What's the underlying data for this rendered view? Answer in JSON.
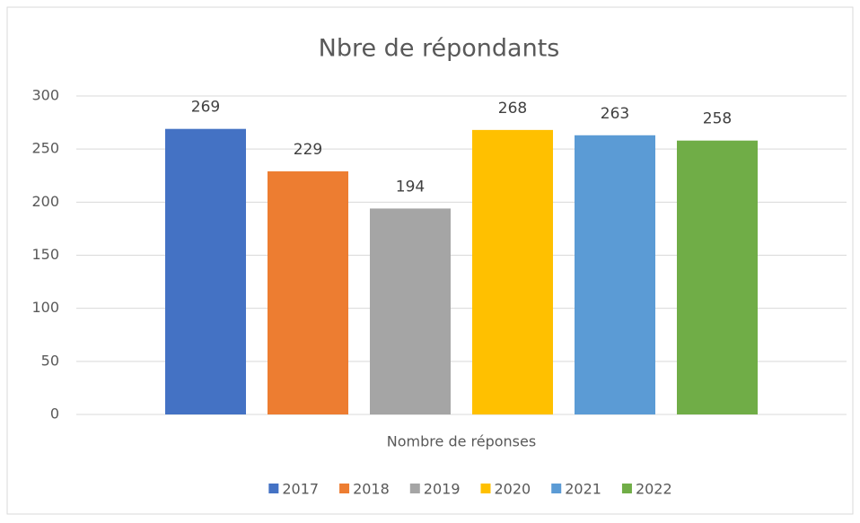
{
  "chart_data": {
    "type": "bar",
    "title": "Nbre de répondants",
    "categories": [
      "Nombre de réponses"
    ],
    "series": [
      {
        "name": "2017",
        "color": "#4472c4",
        "values": [
          269
        ]
      },
      {
        "name": "2018",
        "color": "#ed7d31",
        "values": [
          229
        ]
      },
      {
        "name": "2019",
        "color": "#a5a5a5",
        "values": [
          194
        ]
      },
      {
        "name": "2020",
        "color": "#ffc000",
        "values": [
          268
        ]
      },
      {
        "name": "2021",
        "color": "#5b9bd5",
        "values": [
          263
        ]
      },
      {
        "name": "2022",
        "color": "#70ad47",
        "values": [
          258
        ]
      }
    ],
    "ylim": [
      0,
      300
    ],
    "yticks": [
      0,
      50,
      100,
      150,
      200,
      250,
      300
    ],
    "grid": true,
    "legend": "bottom"
  }
}
